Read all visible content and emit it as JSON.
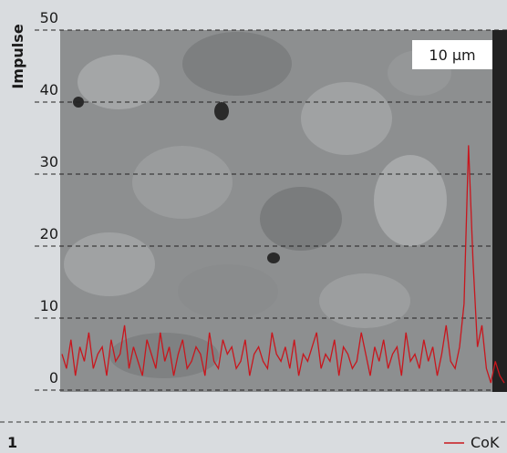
{
  "chart_data": {
    "type": "line",
    "y_label": "Impulse",
    "annotation": "10 µm",
    "panel_label": "1",
    "ylim": [
      0,
      50
    ],
    "yticks": [
      0,
      10,
      20,
      30,
      40,
      50
    ],
    "grid": true,
    "series": [
      {
        "name": "CoK",
        "color": "#c8161d",
        "values": [
          5,
          3,
          7,
          2,
          6,
          4,
          8,
          3,
          5,
          6,
          2,
          7,
          4,
          5,
          9,
          3,
          6,
          4,
          2,
          7,
          5,
          3,
          8,
          4,
          6,
          2,
          5,
          7,
          3,
          4,
          6,
          5,
          2,
          8,
          4,
          3,
          7,
          5,
          6,
          3,
          4,
          7,
          2,
          5,
          6,
          4,
          3,
          8,
          5,
          4,
          6,
          3,
          7,
          2,
          5,
          4,
          6,
          8,
          3,
          5,
          4,
          7,
          2,
          6,
          5,
          3,
          4,
          8,
          5,
          2,
          6,
          4,
          7,
          3,
          5,
          6,
          2,
          8,
          4,
          5,
          3,
          7,
          4,
          6,
          2,
          5,
          9,
          4,
          3,
          6,
          12,
          34,
          18,
          6,
          9,
          3,
          1,
          4,
          2,
          1
        ]
      }
    ]
  }
}
